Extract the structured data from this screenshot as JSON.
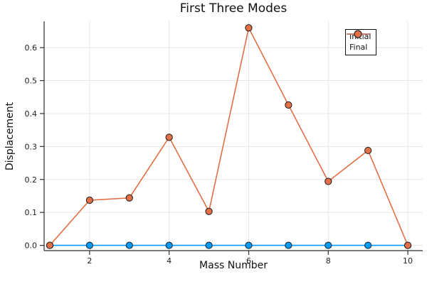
{
  "chart_data": {
    "type": "line",
    "title": "First Three Modes",
    "xlabel": "Mass Number",
    "ylabel": "Displacement",
    "x": [
      1,
      2,
      3,
      4,
      5,
      6,
      7,
      8,
      9,
      10
    ],
    "series": [
      {
        "name": "Initial",
        "color": "#009af9",
        "marker": "circle",
        "values": [
          0.0,
          0.0,
          0.0,
          0.0,
          0.0,
          0.0,
          0.0,
          0.0,
          0.0,
          0.0
        ]
      },
      {
        "name": "Final",
        "color": "#e26f46",
        "marker": "circle",
        "values": [
          0.0,
          0.137,
          0.144,
          0.328,
          0.103,
          0.66,
          0.426,
          0.194,
          0.288,
          0.0
        ]
      }
    ],
    "xticks": [
      2,
      4,
      6,
      8,
      10
    ],
    "yticks": [
      0.0,
      0.1,
      0.2,
      0.3,
      0.4,
      0.5,
      0.6
    ],
    "xlim": [
      0.857,
      10.375
    ],
    "ylim": [
      -0.016,
      0.68
    ],
    "grid": true,
    "legend_position": "top-right",
    "colors": {
      "axis": "#2e2e2e",
      "grid": "#e6e6e6",
      "text": "#202020",
      "marker_stroke": "#1a1a1a",
      "background": "#ffffff"
    }
  }
}
